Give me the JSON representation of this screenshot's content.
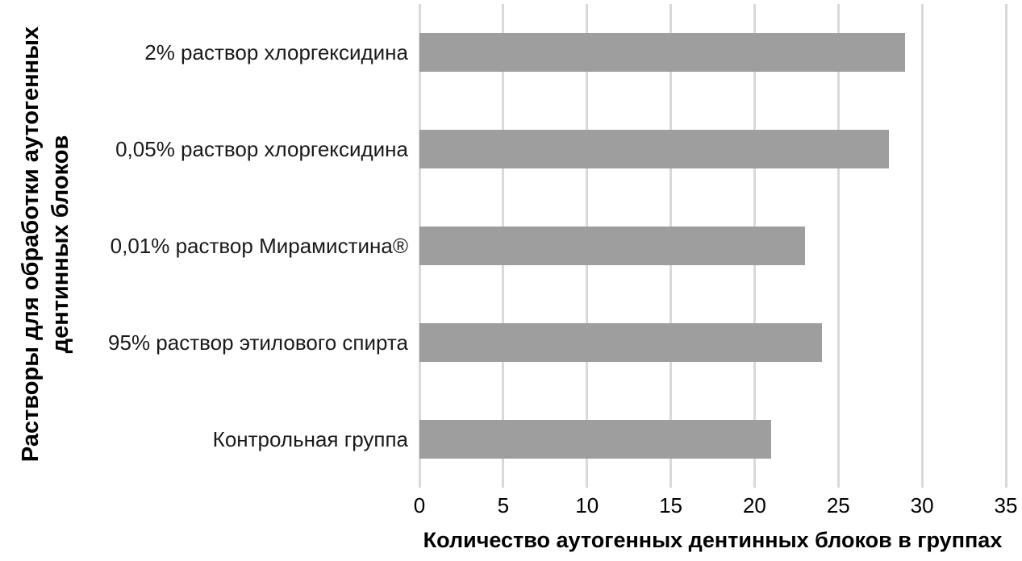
{
  "chart_data": {
    "type": "bar",
    "orientation": "horizontal",
    "categories": [
      "2% раствор хлоргексидина",
      "0,05% раствор хлоргексидина",
      "0,01% раствор Мирамистина®",
      "95% раствор этилового спирта",
      "Контрольная группа"
    ],
    "values": [
      29,
      28,
      23,
      24,
      21
    ],
    "title": "",
    "xlabel": "Количество аутогенных дентинных блоков в группах",
    "ylabel": "Растворы для обработки аутогенных дентинных блоков",
    "ylabel_line1": "Растворы для обработки аутогенных",
    "ylabel_line2": "дентинных блоков",
    "xlim": [
      0,
      35
    ],
    "xticks": [
      0,
      5,
      10,
      15,
      20,
      25,
      30,
      35
    ],
    "grid": "vertical-only",
    "legend": "none",
    "colors": {
      "bar": "#9e9e9e",
      "gridline": "#d9d9d9",
      "tick_text": "#000000",
      "category_text": "#1a1a1a",
      "background": "#ffffff"
    }
  }
}
